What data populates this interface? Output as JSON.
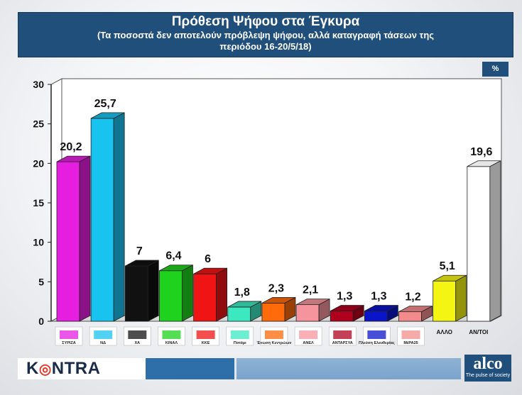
{
  "header": {
    "title": "Πρόθεση Ψήφου στα Έγκυρα",
    "subtitle_line1": "(Τα ποσοστά δεν αποτελούν πρόβλεψη ψήφου, αλλά καταγραφή τάσεων  της",
    "subtitle_line2": "περιόδου 16-20/5/18)"
  },
  "unit_label": "%",
  "chart_data": {
    "type": "bar",
    "title": "Πρόθεση Ψήφου στα Έγκυρα",
    "ylim": [
      0,
      30
    ],
    "yticks": [
      "0",
      "5",
      "10",
      "15",
      "20",
      "25",
      "30"
    ],
    "categories": [
      "ΣΥΡΙΖΑ",
      "ΝΔ",
      "ΧΑ",
      "ΚΙΝΑΛ",
      "ΚΚΕ",
      "Ποτάμι",
      "Ένωση Κεντρώων",
      "ΑΝΕΛ",
      "ΑΝΤΑΡΣΥΑ",
      "Πλεύση Ελευθερίας",
      "ΜέΡΑ25",
      "ΑΛΛΟ",
      "ΑΝ/ΤΟΙ"
    ],
    "values": [
      20.2,
      25.7,
      7,
      6.4,
      6,
      1.8,
      2.3,
      2.1,
      1.3,
      1.3,
      1.2,
      5.1,
      19.6
    ],
    "value_labels": [
      "20,2",
      "25,7",
      "7",
      "6,4",
      "6",
      "1,8",
      "2,3",
      "2,1",
      "1,3",
      "1,3",
      "1,2",
      "5,1",
      "19,6"
    ],
    "colors": [
      "#e61ee0",
      "#19c3f0",
      "#111111",
      "#1ed21e",
      "#f01414",
      "#3be8c0",
      "#ff6a0a",
      "#f5949c",
      "#b0001e",
      "#0a14c8",
      "#f28c8c",
      "#f5f514",
      "#ffffff"
    ],
    "xlabel": "",
    "ylabel": "",
    "grid": false,
    "x_text_labels": {
      "11": "ΑΛΛΟ",
      "12": "ΑΝ/ΤΟΙ"
    }
  },
  "footer": {
    "kontra_left": "K",
    "kontra_o": "◎",
    "kontra_right": "NTRA",
    "alco_name": "alco",
    "alco_tagline": "The pulse of society"
  }
}
